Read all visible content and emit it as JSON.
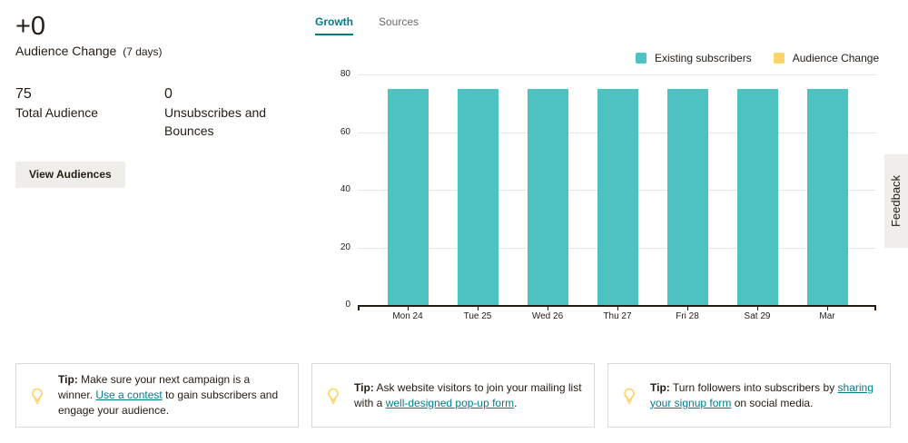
{
  "summary": {
    "audience_change_value": "+0",
    "audience_change_label": "Audience Change",
    "audience_change_period": "(7 days)",
    "total_audience_value": "75",
    "total_audience_label": "Total Audience",
    "unsubscribes_value": "0",
    "unsubscribes_label": "Unsubscribes and Bounces",
    "view_audiences_button": "View Audiences"
  },
  "tabs": [
    {
      "label": "Growth",
      "active": true
    },
    {
      "label": "Sources",
      "active": false
    }
  ],
  "legend": [
    {
      "label": "Existing subscribers",
      "color": "#4cc3c1"
    },
    {
      "label": "Audience Change",
      "color": "#fbd46a"
    }
  ],
  "feedback_label": "Feedback",
  "chart_data": {
    "type": "bar",
    "title": "",
    "xlabel": "",
    "ylabel": "",
    "categories": [
      "Mon 24",
      "Tue 25",
      "Wed 26",
      "Thu 27",
      "Fri 28",
      "Sat 29",
      "Mar"
    ],
    "series": [
      {
        "name": "Existing subscribers",
        "color": "#4cc3c1",
        "values": [
          75,
          75,
          75,
          75,
          75,
          75,
          75
        ]
      },
      {
        "name": "Audience Change",
        "color": "#fbd46a",
        "values": [
          0,
          0,
          0,
          0,
          0,
          0,
          0
        ]
      }
    ],
    "yticks": [
      0,
      20,
      40,
      60,
      80
    ],
    "ylim": [
      0,
      80
    ],
    "grid": true,
    "legend_position": "top-right",
    "stacked": true
  },
  "tips": [
    {
      "prefix": "Tip:",
      "before": " Make sure your next campaign is a winner. ",
      "link": "Use a contest",
      "after": " to gain subscribers and engage your audience."
    },
    {
      "prefix": "Tip:",
      "before": " Ask website visitors to join your mailing list with a ",
      "link": "well-designed pop-up form",
      "after": "."
    },
    {
      "prefix": "Tip:",
      "before": " Turn followers into subscribers by ",
      "link": "sharing your signup form",
      "after": " on social media."
    }
  ]
}
